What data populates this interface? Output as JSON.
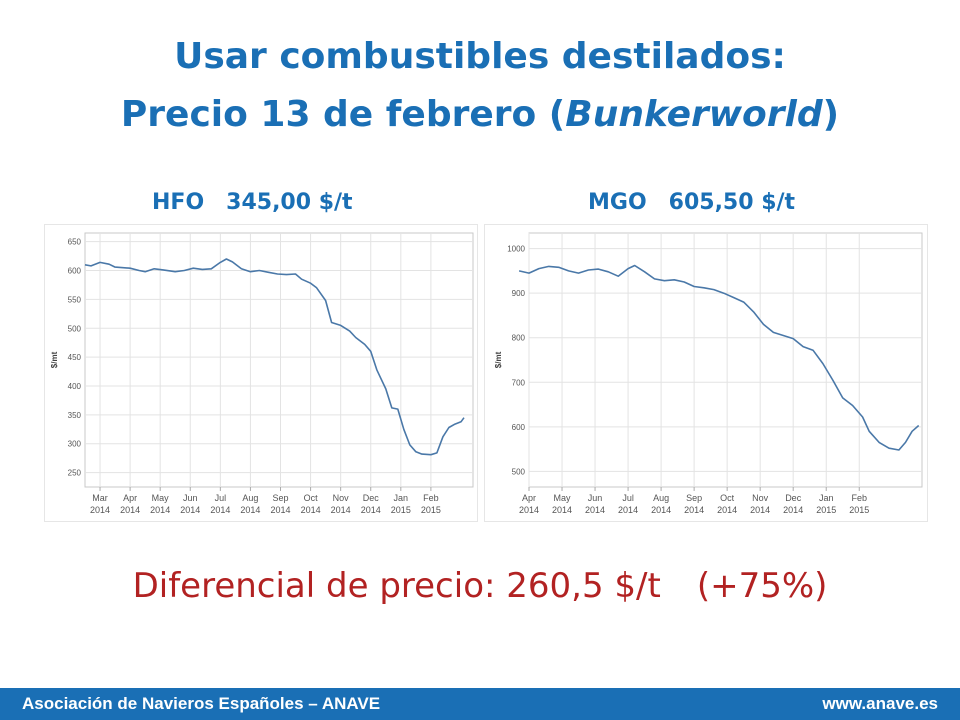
{
  "title": {
    "line1": "Usar combustibles destilados:",
    "line2_prefix": "Precio 13 de febrero (",
    "line2_italic": "Bunkerworld",
    "line2_suffix": ")"
  },
  "captions": {
    "hfo_label": "HFO",
    "hfo_price": "345,00 $/t",
    "mgo_label": "MGO",
    "mgo_price": "605,50 $/t"
  },
  "differential": {
    "text": "Diferencial de precio: 260,5 $/t",
    "pct": "(+75%)"
  },
  "footer": {
    "left": "Asociación de Navieros Españoles – ANAVE",
    "right": "www.anave.es"
  },
  "colors": {
    "title": "#1a6fb5",
    "differential": "#b22222",
    "footer_bg": "#1a6fb5",
    "series_line": "#4a78a8"
  },
  "chart_data": [
    {
      "type": "line",
      "ylabel": "$/mt",
      "ylim": [
        225,
        665
      ],
      "yticks": [
        250,
        300,
        350,
        400,
        450,
        500,
        550,
        600,
        650
      ],
      "xlim": [
        0,
        12.9
      ],
      "xticks": [
        {
          "x": 0.5,
          "label": [
            "Mar",
            "2014"
          ]
        },
        {
          "x": 1.5,
          "label": [
            "Apr",
            "2014"
          ]
        },
        {
          "x": 2.5,
          "label": [
            "May",
            "2014"
          ]
        },
        {
          "x": 3.5,
          "label": [
            "Jun",
            "2014"
          ]
        },
        {
          "x": 4.5,
          "label": [
            "Jul",
            "2014"
          ]
        },
        {
          "x": 5.5,
          "label": [
            "Aug",
            "2014"
          ]
        },
        {
          "x": 6.5,
          "label": [
            "Sep",
            "2014"
          ]
        },
        {
          "x": 7.5,
          "label": [
            "Oct",
            "2014"
          ]
        },
        {
          "x": 8.5,
          "label": [
            "Nov",
            "2014"
          ]
        },
        {
          "x": 9.5,
          "label": [
            "Dec",
            "2014"
          ]
        },
        {
          "x": 10.5,
          "label": [
            "Jan",
            "2015"
          ]
        },
        {
          "x": 11.5,
          "label": [
            "Feb",
            "2015"
          ]
        }
      ],
      "grid": true,
      "series": [
        {
          "points": [
            [
              0,
              610
            ],
            [
              0.2,
              608
            ],
            [
              0.5,
              614
            ],
            [
              0.8,
              611
            ],
            [
              1.0,
              606
            ],
            [
              1.5,
              604
            ],
            [
              1.8,
              600
            ],
            [
              2.0,
              598
            ],
            [
              2.3,
              603
            ],
            [
              2.6,
              601
            ],
            [
              3.0,
              598
            ],
            [
              3.3,
              600
            ],
            [
              3.6,
              604
            ],
            [
              3.9,
              602
            ],
            [
              4.2,
              603
            ],
            [
              4.5,
              614
            ],
            [
              4.7,
              620
            ],
            [
              4.9,
              615
            ],
            [
              5.2,
              603
            ],
            [
              5.5,
              598
            ],
            [
              5.8,
              600
            ],
            [
              6.1,
              597
            ],
            [
              6.4,
              594
            ],
            [
              6.7,
              593
            ],
            [
              7.0,
              594
            ],
            [
              7.2,
              585
            ],
            [
              7.5,
              578
            ],
            [
              7.7,
              570
            ],
            [
              8.0,
              548
            ],
            [
              8.2,
              510
            ],
            [
              8.5,
              505
            ],
            [
              8.8,
              495
            ],
            [
              9.0,
              484
            ],
            [
              9.3,
              472
            ],
            [
              9.5,
              460
            ],
            [
              9.7,
              428
            ],
            [
              10.0,
              395
            ],
            [
              10.2,
              362
            ],
            [
              10.4,
              360
            ],
            [
              10.6,
              325
            ],
            [
              10.8,
              298
            ],
            [
              11.0,
              286
            ],
            [
              11.2,
              282
            ],
            [
              11.5,
              281
            ],
            [
              11.7,
              284
            ],
            [
              11.9,
              312
            ],
            [
              12.1,
              328
            ],
            [
              12.3,
              334
            ],
            [
              12.5,
              338
            ],
            [
              12.6,
              345
            ]
          ]
        }
      ]
    },
    {
      "type": "line",
      "ylabel": "$/mt",
      "ylim": [
        465,
        1035
      ],
      "yticks": [
        500,
        600,
        700,
        800,
        900,
        1000
      ],
      "xlim": [
        0,
        11.9
      ],
      "xticks": [
        {
          "x": 0.0,
          "label": [
            "Apr",
            "2014"
          ]
        },
        {
          "x": 1.0,
          "label": [
            "May",
            "2014"
          ]
        },
        {
          "x": 2.0,
          "label": [
            "Jun",
            "2014"
          ]
        },
        {
          "x": 3.0,
          "label": [
            "Jul",
            "2014"
          ]
        },
        {
          "x": 4.0,
          "label": [
            "Aug",
            "2014"
          ]
        },
        {
          "x": 5.0,
          "label": [
            "Sep",
            "2014"
          ]
        },
        {
          "x": 6.0,
          "label": [
            "Oct",
            "2014"
          ]
        },
        {
          "x": 7.0,
          "label": [
            "Nov",
            "2014"
          ]
        },
        {
          "x": 8.0,
          "label": [
            "Dec",
            "2014"
          ]
        },
        {
          "x": 9.0,
          "label": [
            "Jan",
            "2015"
          ]
        },
        {
          "x": 10.0,
          "label": [
            "Feb",
            "2015"
          ]
        }
      ],
      "grid": true,
      "series": [
        {
          "points": [
            [
              -0.3,
              950
            ],
            [
              0.0,
              945
            ],
            [
              0.3,
              955
            ],
            [
              0.6,
              960
            ],
            [
              0.9,
              958
            ],
            [
              1.2,
              950
            ],
            [
              1.5,
              945
            ],
            [
              1.8,
              952
            ],
            [
              2.1,
              954
            ],
            [
              2.4,
              948
            ],
            [
              2.7,
              938
            ],
            [
              3.0,
              955
            ],
            [
              3.2,
              962
            ],
            [
              3.5,
              948
            ],
            [
              3.8,
              932
            ],
            [
              4.1,
              928
            ],
            [
              4.4,
              930
            ],
            [
              4.7,
              925
            ],
            [
              5.0,
              915
            ],
            [
              5.3,
              912
            ],
            [
              5.6,
              908
            ],
            [
              5.9,
              900
            ],
            [
              6.2,
              890
            ],
            [
              6.5,
              880
            ],
            [
              6.8,
              858
            ],
            [
              7.1,
              830
            ],
            [
              7.4,
              812
            ],
            [
              7.7,
              805
            ],
            [
              8.0,
              798
            ],
            [
              8.3,
              780
            ],
            [
              8.6,
              772
            ],
            [
              8.9,
              742
            ],
            [
              9.2,
              705
            ],
            [
              9.5,
              665
            ],
            [
              9.8,
              648
            ],
            [
              10.1,
              622
            ],
            [
              10.3,
              590
            ],
            [
              10.6,
              565
            ],
            [
              10.9,
              552
            ],
            [
              11.2,
              548
            ],
            [
              11.4,
              565
            ],
            [
              11.6,
              590
            ],
            [
              11.8,
              603
            ]
          ]
        }
      ]
    }
  ]
}
